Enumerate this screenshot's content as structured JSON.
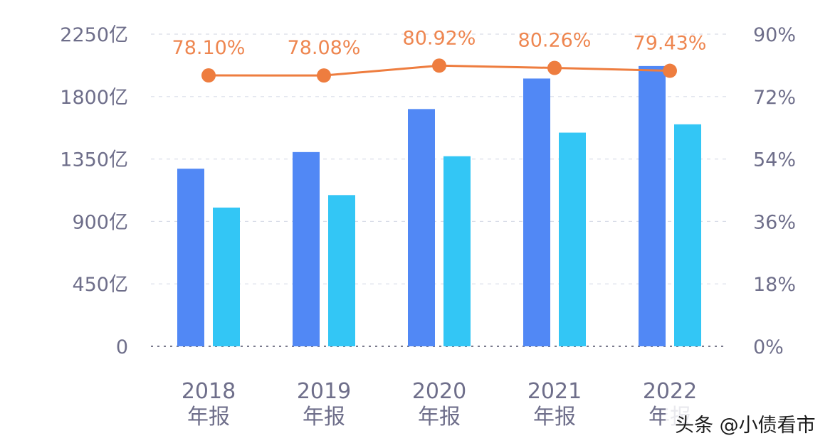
{
  "chart_data": {
    "type": "bar",
    "categories": [
      [
        "2018",
        "年报"
      ],
      [
        "2019",
        "年报"
      ],
      [
        "2020",
        "年报"
      ],
      [
        "2021",
        "年报"
      ],
      [
        "2022",
        "年报"
      ]
    ],
    "series": [
      {
        "type": "bar",
        "axis": "left",
        "color": "#5188f5",
        "values": [
          1280,
          1400,
          1710,
          1930,
          2020
        ]
      },
      {
        "type": "bar",
        "axis": "left",
        "color": "#33c6f5",
        "values": [
          1000,
          1090,
          1370,
          1540,
          1600
        ]
      },
      {
        "type": "line",
        "axis": "right",
        "color": "#ee7d3f",
        "values": [
          78.1,
          78.08,
          80.92,
          80.26,
          79.43
        ],
        "labels": [
          "78.10%",
          "78.08%",
          "80.92%",
          "80.26%",
          "79.43%"
        ]
      }
    ],
    "y_left": {
      "range": [
        0,
        2250
      ],
      "ticks": [
        0,
        450,
        900,
        1350,
        1800,
        2250
      ],
      "tick_labels": [
        "0",
        "450亿",
        "900亿",
        "1350亿",
        "1800亿",
        "2250亿"
      ]
    },
    "y_right": {
      "range": [
        0,
        90
      ],
      "ticks": [
        0,
        18,
        36,
        54,
        72,
        90
      ],
      "tick_labels": [
        "0%",
        "18%",
        "36%",
        "54%",
        "72%",
        "90%"
      ]
    },
    "grid": true,
    "legend": "none"
  },
  "watermark": {
    "text": "头条 @小债看市",
    "icon": "toutiao-logo-icon"
  }
}
